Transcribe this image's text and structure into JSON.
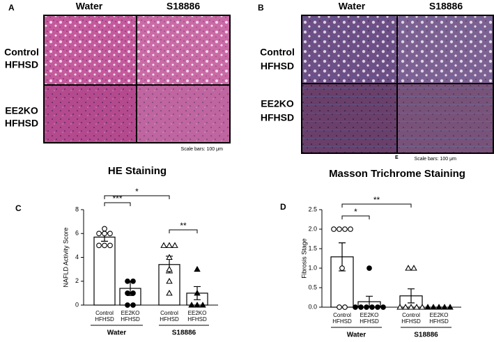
{
  "panel_a": {
    "label": "A",
    "columns": [
      "Water",
      "S18886"
    ],
    "rows": [
      [
        "Control",
        "HFHSD"
      ],
      [
        "EE2KO",
        "HFHSD"
      ]
    ],
    "scale": "Scale bars: 100 μm",
    "title": "HE Staining"
  },
  "panel_b": {
    "label": "B",
    "columns": [
      "Water",
      "S18886"
    ],
    "rows": [
      [
        "Control",
        "HFHSD"
      ],
      [
        "EE2KO",
        "HFHSD"
      ]
    ],
    "stray": "E",
    "scale": "Scale bars: 100 μm",
    "title": "Masson Trichrome Staining"
  },
  "panel_c_label": "C",
  "panel_d_label": "D",
  "chart_data": [
    {
      "type": "bar",
      "ylabel": "NAFLD Activity Score",
      "categories": [
        [
          "Control",
          "HFHSD"
        ],
        [
          "EE2KO",
          "HFHSD"
        ],
        [
          "Control",
          "HFHSD"
        ],
        [
          "EE2KO",
          "HFHSD"
        ]
      ],
      "groups": [
        "Water",
        "S18886"
      ],
      "values": [
        5.7,
        1.4,
        3.4,
        1.0
      ],
      "errors": [
        0.35,
        0.6,
        0.7,
        0.55
      ],
      "points": [
        [
          6.4,
          6,
          6,
          6,
          5,
          5,
          5
        ],
        [
          2,
          2,
          1,
          1,
          0,
          0
        ],
        [
          5,
          5,
          5,
          4,
          3,
          2,
          1
        ],
        [
          3,
          1,
          0,
          0,
          0
        ]
      ],
      "markers": [
        "open-circle",
        "filled-circle",
        "open-triangle",
        "filled-triangle"
      ],
      "color": "#ffffff",
      "edgecolor": "#000000",
      "significance": [
        "***",
        "*",
        "**"
      ],
      "ylim": [
        0,
        8
      ],
      "yticks": [
        0,
        2,
        4,
        6,
        8
      ]
    },
    {
      "type": "bar",
      "ylabel": "Fibrosis Stage",
      "categories": [
        [
          "Control",
          "HFHSD"
        ],
        [
          "EE2KO",
          "HFHSD"
        ],
        [
          "Control",
          "HFHSD"
        ],
        [
          "EE2KO",
          "HFHSD"
        ]
      ],
      "groups": [
        "Water",
        "S18886"
      ],
      "values": [
        1.29,
        0.14,
        0.29,
        0.0
      ],
      "errors": [
        0.36,
        0.14,
        0.18,
        0.0
      ],
      "points": [
        [
          2,
          2,
          2,
          2,
          1,
          0,
          0
        ],
        [
          1,
          0,
          0,
          0,
          0,
          0,
          0
        ],
        [
          1,
          1,
          0,
          0,
          0,
          0,
          0
        ],
        [
          0,
          0,
          0,
          0,
          0
        ]
      ],
      "markers": [
        "open-circle",
        "filled-circle",
        "open-triangle",
        "filled-triangle"
      ],
      "color": "#ffffff",
      "edgecolor": "#000000",
      "significance": [
        "*",
        "**"
      ],
      "ylim": [
        0,
        2.5
      ],
      "yticks": [
        {
          "value": 0,
          "label": "0.0"
        },
        0.5,
        {
          "value": 1,
          "label": "1.0"
        },
        1.5,
        {
          "value": 2,
          "label": "2.0"
        },
        2.5
      ]
    }
  ]
}
